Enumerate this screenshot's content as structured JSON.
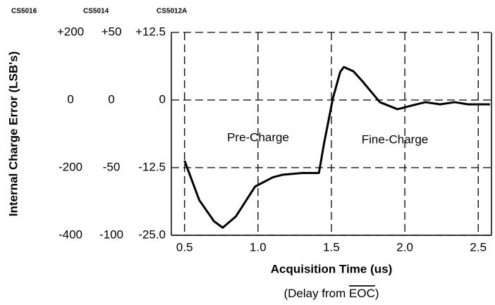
{
  "chart_data": {
    "type": "line",
    "y_label": "Internal Charge Error (LSB's)",
    "x_label": "Acquisition Time (us)",
    "x_note": {
      "prefix": "(Delay from ",
      "overlined": "EOC",
      "suffix": ")"
    },
    "annotations": [
      "Pre-Charge",
      "Fine-Charge"
    ],
    "xlim": [
      0.41,
      2.59
    ],
    "xticks": [
      0.5,
      {
        "value": 1,
        "label": "1.0"
      },
      1.5,
      {
        "value": 2,
        "label": "2.0"
      },
      2.5
    ],
    "y_scale_name": "CS5012A",
    "ylim": [
      -25,
      12.5
    ],
    "yticks": [
      {
        "value": 12.5,
        "label": "+12.5"
      },
      0,
      -12.5,
      {
        "value": -25,
        "label": "-25.0"
      }
    ],
    "other_y_scales": [
      {
        "name": "CS5016",
        "ylim": [
          -400,
          200
        ],
        "yticks": [
          {
            "value": 200,
            "label": "+200"
          },
          0,
          -200,
          -400
        ]
      },
      {
        "name": "CS5014",
        "ylim": [
          -100,
          50
        ],
        "yticks": [
          {
            "value": 50,
            "label": "+50"
          },
          0,
          -50,
          -100
        ]
      }
    ],
    "grid": true,
    "series": [
      {
        "color": "#000000",
        "x": [
          0.5,
          0.6,
          0.7,
          0.76,
          0.85,
          0.98,
          1.1,
          1.17,
          1.3,
          1.415,
          1.45,
          1.51,
          1.56,
          1.585,
          1.65,
          1.71,
          1.83,
          1.95,
          2.05,
          2.14,
          2.24,
          2.34,
          2.43,
          2.58
        ],
        "values": [
          -11.2,
          -18.5,
          -22.4,
          -23.6,
          -21.5,
          -16,
          -14.3,
          -13.8,
          -13.5,
          -13.5,
          -8,
          0.3,
          5.2,
          6.1,
          5.3,
          3.5,
          -0.4,
          -1.7,
          -1,
          -0.4,
          -0.8,
          -0.4,
          -0.8,
          -0.8
        ]
      }
    ]
  }
}
